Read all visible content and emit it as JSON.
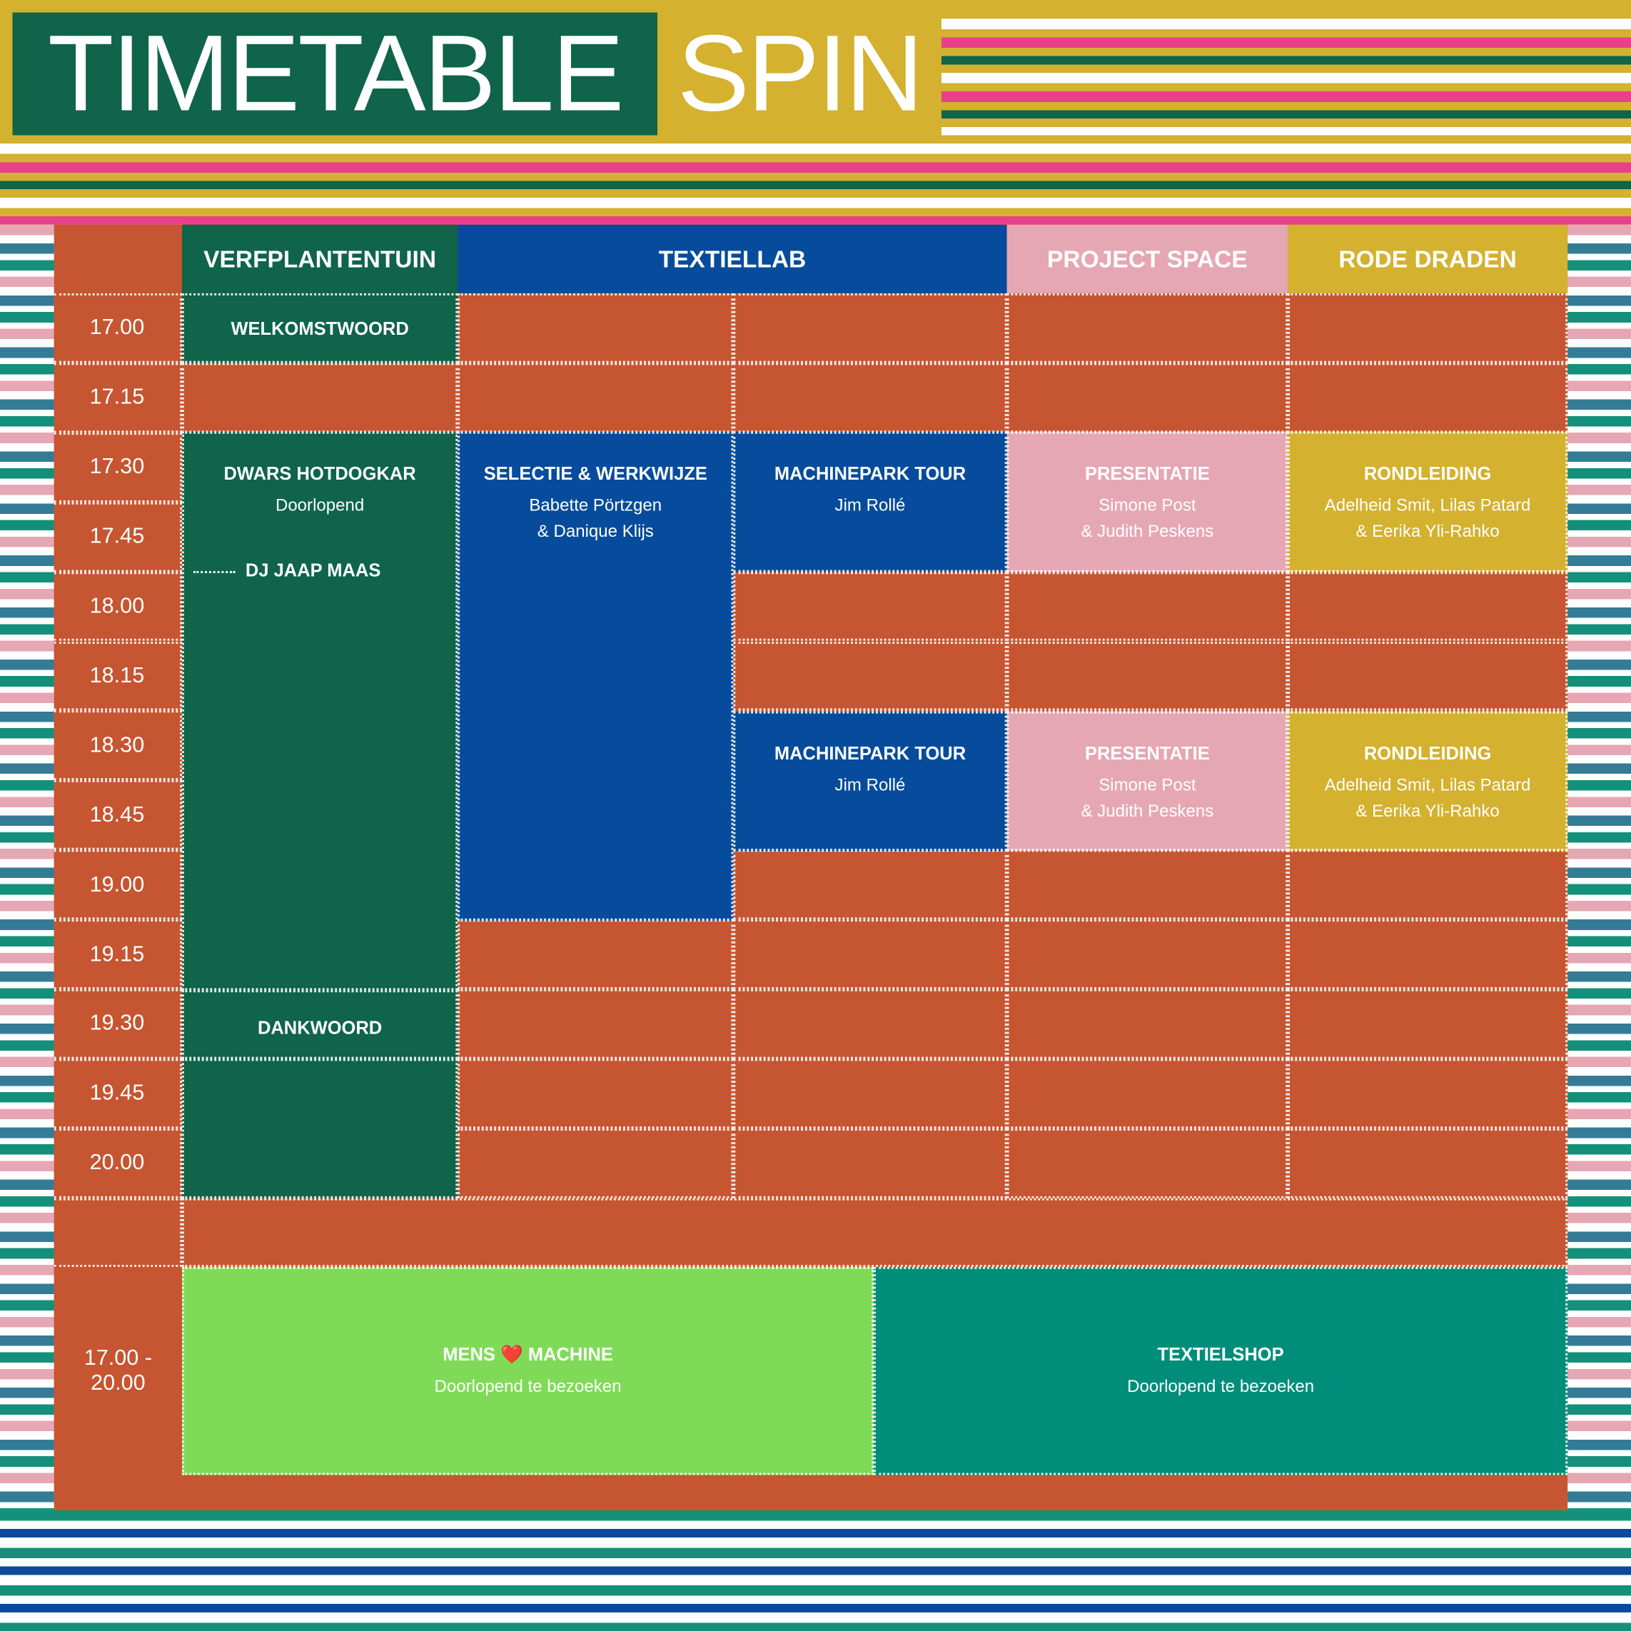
{
  "header": {
    "title": "TIMETABLE",
    "subtitle": "SPIN"
  },
  "columns": [
    "VERFPLANTENTUIN",
    "TEXTIELLAB",
    "PROJECT SPACE",
    "RODE DRADEN"
  ],
  "times": [
    "17.00",
    "17.15",
    "17.30",
    "17.45",
    "18.00",
    "18.15",
    "18.30",
    "18.45",
    "19.00",
    "19.15",
    "19.30",
    "19.45",
    "20.00"
  ],
  "events": [
    {
      "title": "WELKOMSTWOORD"
    },
    {
      "title": "DWARS HOTDOGKAR",
      "lines": [
        "Doorlopend"
      ]
    },
    {
      "title": "DJ JAAP MAAS"
    },
    {
      "title": "DANKWOORD"
    },
    {
      "title": "SELECTIE & WERKWIJZE",
      "lines": [
        "Babette Pörtzgen",
        "& Danique Klijs"
      ]
    },
    {
      "title": "MACHINEPARK TOUR",
      "lines": [
        "Jim Rollé"
      ]
    },
    {
      "title": "MACHINEPARK TOUR",
      "lines": [
        "Jim Rollé"
      ]
    },
    {
      "title": "PRESENTATIE",
      "lines": [
        "Simone Post",
        "& Judith Peskens"
      ]
    },
    {
      "title": "PRESENTATIE",
      "lines": [
        "Simone Post",
        "& Judith Peskens"
      ]
    },
    {
      "title": "RONDLEIDING",
      "lines": [
        "Adelheid Smit, Lilas Patard",
        "& Eerika Yli-Rahko"
      ]
    },
    {
      "title": "RONDLEIDING",
      "lines": [
        "Adelheid Smit, Lilas Patard",
        "& Eerika Yli-Rahko"
      ]
    }
  ],
  "all_day": {
    "time": "17.00 - 20.00",
    "items": [
      {
        "title": "MENS ❤️ MACHINE",
        "lines": [
          "Doorlopend te bezoeken"
        ]
      },
      {
        "title": "TEXTIELSHOP",
        "lines": [
          "Doorlopend te bezoeken"
        ]
      }
    ]
  }
}
